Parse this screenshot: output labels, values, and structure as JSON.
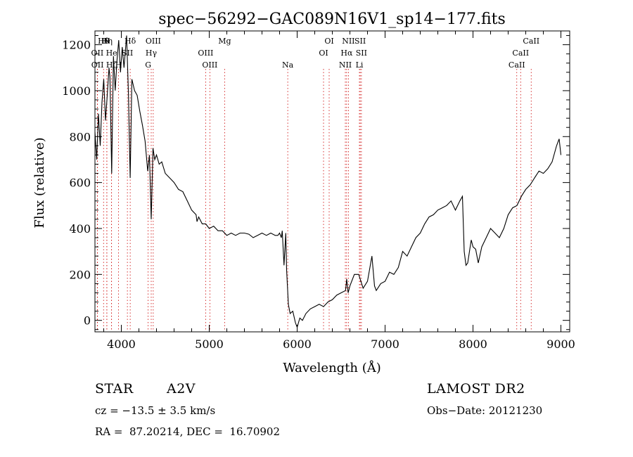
{
  "chart_data": {
    "type": "line",
    "title": "spec−56292−GAC089N16V1_sp14−177.fits",
    "xlabel": "Wavelength (Å)",
    "ylabel": "Flux (relative)",
    "xlim": [
      3700,
      9100
    ],
    "ylim": [
      -50,
      1260
    ],
    "x_ticks": [
      4000,
      5000,
      6000,
      7000,
      8000,
      9000
    ],
    "y_ticks": [
      0,
      200,
      400,
      600,
      800,
      1000,
      1200
    ],
    "x_tick_labels": [
      "4000",
      "5000",
      "6000",
      "7000",
      "8000",
      "9000"
    ],
    "y_tick_labels": [
      "0",
      "200",
      "400",
      "600",
      "800",
      "1000",
      "1200"
    ],
    "spectrum": {
      "x": [
        3700,
        3720,
        3740,
        3760,
        3780,
        3800,
        3820,
        3840,
        3860,
        3870,
        3890,
        3910,
        3930,
        3950,
        3970,
        3990,
        4010,
        4030,
        4060,
        4080,
        4101,
        4120,
        4150,
        4180,
        4210,
        4240,
        4270,
        4300,
        4320,
        4340,
        4360,
        4380,
        4400,
        4430,
        4460,
        4500,
        4550,
        4600,
        4650,
        4700,
        4750,
        4800,
        4850,
        4861,
        4880,
        4920,
        4960,
        5000,
        5050,
        5100,
        5150,
        5200,
        5250,
        5300,
        5350,
        5400,
        5450,
        5500,
        5550,
        5600,
        5650,
        5700,
        5750,
        5780,
        5800,
        5820,
        5830,
        5850,
        5870,
        5880,
        5900,
        5920,
        5950,
        5980,
        6000,
        6030,
        6060,
        6100,
        6150,
        6200,
        6250,
        6300,
        6350,
        6400,
        6450,
        6500,
        6550,
        6563,
        6580,
        6600,
        6650,
        6700,
        6750,
        6800,
        6850,
        6880,
        6900,
        6950,
        7000,
        7050,
        7100,
        7150,
        7200,
        7250,
        7300,
        7350,
        7400,
        7450,
        7500,
        7550,
        7600,
        7650,
        7700,
        7750,
        7800,
        7850,
        7880,
        7900,
        7920,
        7940,
        7960,
        7980,
        8000,
        8030,
        8060,
        8100,
        8150,
        8200,
        8250,
        8300,
        8350,
        8400,
        8450,
        8500,
        8550,
        8600,
        8650,
        8700,
        8750,
        8800,
        8850,
        8900,
        8950,
        8980,
        9000
      ],
      "y": [
        820,
        700,
        900,
        760,
        950,
        1050,
        870,
        980,
        1100,
        1060,
        640,
        1150,
        1000,
        1130,
        1220,
        1080,
        1190,
        1100,
        1240,
        1000,
        620,
        1050,
        1000,
        980,
        910,
        850,
        780,
        650,
        720,
        440,
        750,
        700,
        720,
        680,
        690,
        640,
        620,
        600,
        570,
        560,
        520,
        480,
        460,
        430,
        450,
        420,
        420,
        400,
        410,
        390,
        390,
        370,
        380,
        370,
        380,
        380,
        375,
        360,
        370,
        380,
        370,
        380,
        370,
        370,
        380,
        360,
        390,
        240,
        380,
        220,
        70,
        30,
        40,
        -10,
        -30,
        10,
        0,
        30,
        50,
        60,
        70,
        60,
        80,
        90,
        110,
        120,
        130,
        180,
        120,
        150,
        200,
        200,
        140,
        170,
        280,
        150,
        130,
        160,
        170,
        210,
        200,
        230,
        300,
        280,
        320,
        360,
        380,
        420,
        450,
        460,
        480,
        490,
        500,
        520,
        480,
        520,
        540,
        300,
        240,
        250,
        300,
        350,
        320,
        310,
        250,
        320,
        360,
        400,
        380,
        360,
        400,
        460,
        490,
        500,
        540,
        570,
        590,
        620,
        650,
        640,
        660,
        690,
        760,
        790,
        720
      ]
    },
    "lines": [
      {
        "name": "Hθ",
        "x": 3798,
        "row": 0
      },
      {
        "name": "N",
        "x": 3835,
        "row": 0
      },
      {
        "name": "Hη",
        "x": 3835,
        "row": 0
      },
      {
        "name": "Hδ",
        "x": 4101,
        "row": 0
      },
      {
        "name": "OIII",
        "x": 4363,
        "row": 0
      },
      {
        "name": "Mg",
        "x": 5175,
        "row": 0
      },
      {
        "name": "OI",
        "x": 6364,
        "row": 0
      },
      {
        "name": "NII",
        "x": 6583,
        "row": 0
      },
      {
        "name": "SII",
        "x": 6717,
        "row": 0
      },
      {
        "name": "CaII",
        "x": 8662,
        "row": 0
      },
      {
        "name": "OII",
        "x": 3727,
        "row": 1
      },
      {
        "name": "He",
        "x": 3889,
        "row": 1
      },
      {
        "name": "SII",
        "x": 4069,
        "row": 1
      },
      {
        "name": "Hγ",
        "x": 4340,
        "row": 1
      },
      {
        "name": "OIII",
        "x": 4959,
        "row": 1
      },
      {
        "name": "OI",
        "x": 6300,
        "row": 1
      },
      {
        "name": "Hα",
        "x": 6563,
        "row": 1
      },
      {
        "name": "SII",
        "x": 6731,
        "row": 1
      },
      {
        "name": "CaII",
        "x": 8542,
        "row": 1
      },
      {
        "name": "OII",
        "x": 3729,
        "row": 2
      },
      {
        "name": "Hζ",
        "x": 3889,
        "row": 2
      },
      {
        "name": "H",
        "x": 3968,
        "row": 2
      },
      {
        "name": "G",
        "x": 4305,
        "row": 2
      },
      {
        "name": "OIII",
        "x": 5007,
        "row": 2
      },
      {
        "name": "Na",
        "x": 5893,
        "row": 2
      },
      {
        "name": "NII",
        "x": 6548,
        "row": 2
      },
      {
        "name": "Li",
        "x": 6708,
        "row": 2
      },
      {
        "name": "CaII",
        "x": 8498,
        "row": 2
      }
    ]
  },
  "info": {
    "class": "STAR",
    "subclass": "A2V",
    "survey": "LAMOST DR2",
    "cz": "cz = −13.5 ± 3.5 km/s",
    "obs_date": "Obs−Date: 20121230",
    "coords": "RA =  87.20214, DEC =  16.70902"
  },
  "colors": {
    "axis": "#000000",
    "line_marker": "#cc0000",
    "spectrum": "#000000"
  }
}
